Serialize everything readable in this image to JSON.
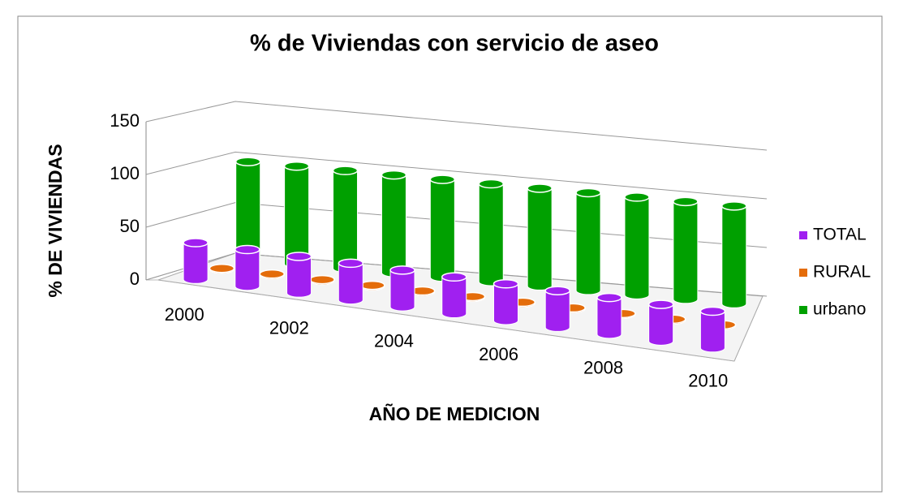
{
  "chart_data": {
    "type": "bar3d",
    "title": "% de Viviendas con servicio de aseo",
    "x_label": "AÑO DE MEDICION",
    "y_label": "% DE VIVIENDAS",
    "categories": [
      "2000",
      null,
      "2002",
      null,
      "2004",
      null,
      "2006",
      null,
      "2008",
      null,
      "2010"
    ],
    "series": [
      {
        "name": "TOTAL",
        "color": "#a020f0",
        "values": [
          35,
          35,
          35,
          35,
          35,
          35,
          35,
          35,
          35,
          35,
          35
        ]
      },
      {
        "name": "RURAL",
        "color": "#e46c0a",
        "values": [
          1,
          1,
          1,
          1,
          1,
          1,
          1,
          1,
          1,
          1,
          1
        ]
      },
      {
        "name": "urbano",
        "color": "#00a000",
        "values": [
          96,
          96,
          96,
          96,
          96,
          96,
          96,
          96,
          96,
          96,
          96
        ]
      }
    ],
    "ylim": [
      0,
      150
    ],
    "yticks": [
      0,
      50,
      100,
      150
    ],
    "grid": true,
    "legend": "right"
  }
}
